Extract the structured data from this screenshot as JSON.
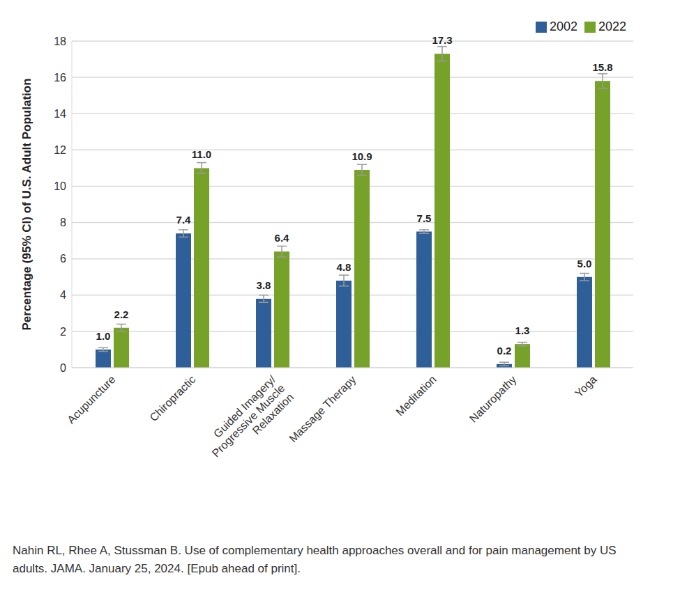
{
  "chart_data": {
    "type": "bar",
    "y_label": "Percentage (95% CI) of U.S. Adult Population",
    "categories": [
      "Acupuncture",
      "Chiropractic",
      "Guided Imagery/Progressive Muscle Relaxation",
      "Massage Therapy",
      "Meditation",
      "Naturopathy",
      "Yoga"
    ],
    "series": [
      {
        "name": "2002",
        "color": "#2f5f98",
        "values": [
          1.0,
          7.4,
          3.8,
          4.8,
          7.5,
          0.2,
          5.0
        ],
        "value_labels": [
          "1.0",
          "7.4",
          "3.8",
          "4.8",
          "7.5",
          "0.2",
          "5.0"
        ],
        "errors": [
          0.1,
          0.2,
          0.2,
          0.3,
          0.1,
          0.1,
          0.2
        ]
      },
      {
        "name": "2022",
        "color": "#77a22a",
        "values": [
          2.2,
          11.0,
          6.4,
          10.9,
          17.3,
          1.3,
          15.8
        ],
        "value_labels": [
          "2.2",
          "11.0",
          "6.4",
          "10.9",
          "17.3",
          "1.3",
          "15.8"
        ],
        "errors": [
          0.2,
          0.3,
          0.3,
          0.3,
          0.4,
          0.1,
          0.4
        ]
      }
    ],
    "ylim": [
      0,
      18
    ],
    "yticks": [
      0,
      2,
      4,
      6,
      8,
      10,
      12,
      14,
      16,
      18
    ],
    "grid": true,
    "legend": "top-right",
    "data_labels": true,
    "annotations": [
      "Nahin RL, Rhee A, Stussman B. Use of complementary health approaches overall and for pain management by US adults. JAMA. January 25, 2024. [Epub ahead of print]."
    ]
  }
}
